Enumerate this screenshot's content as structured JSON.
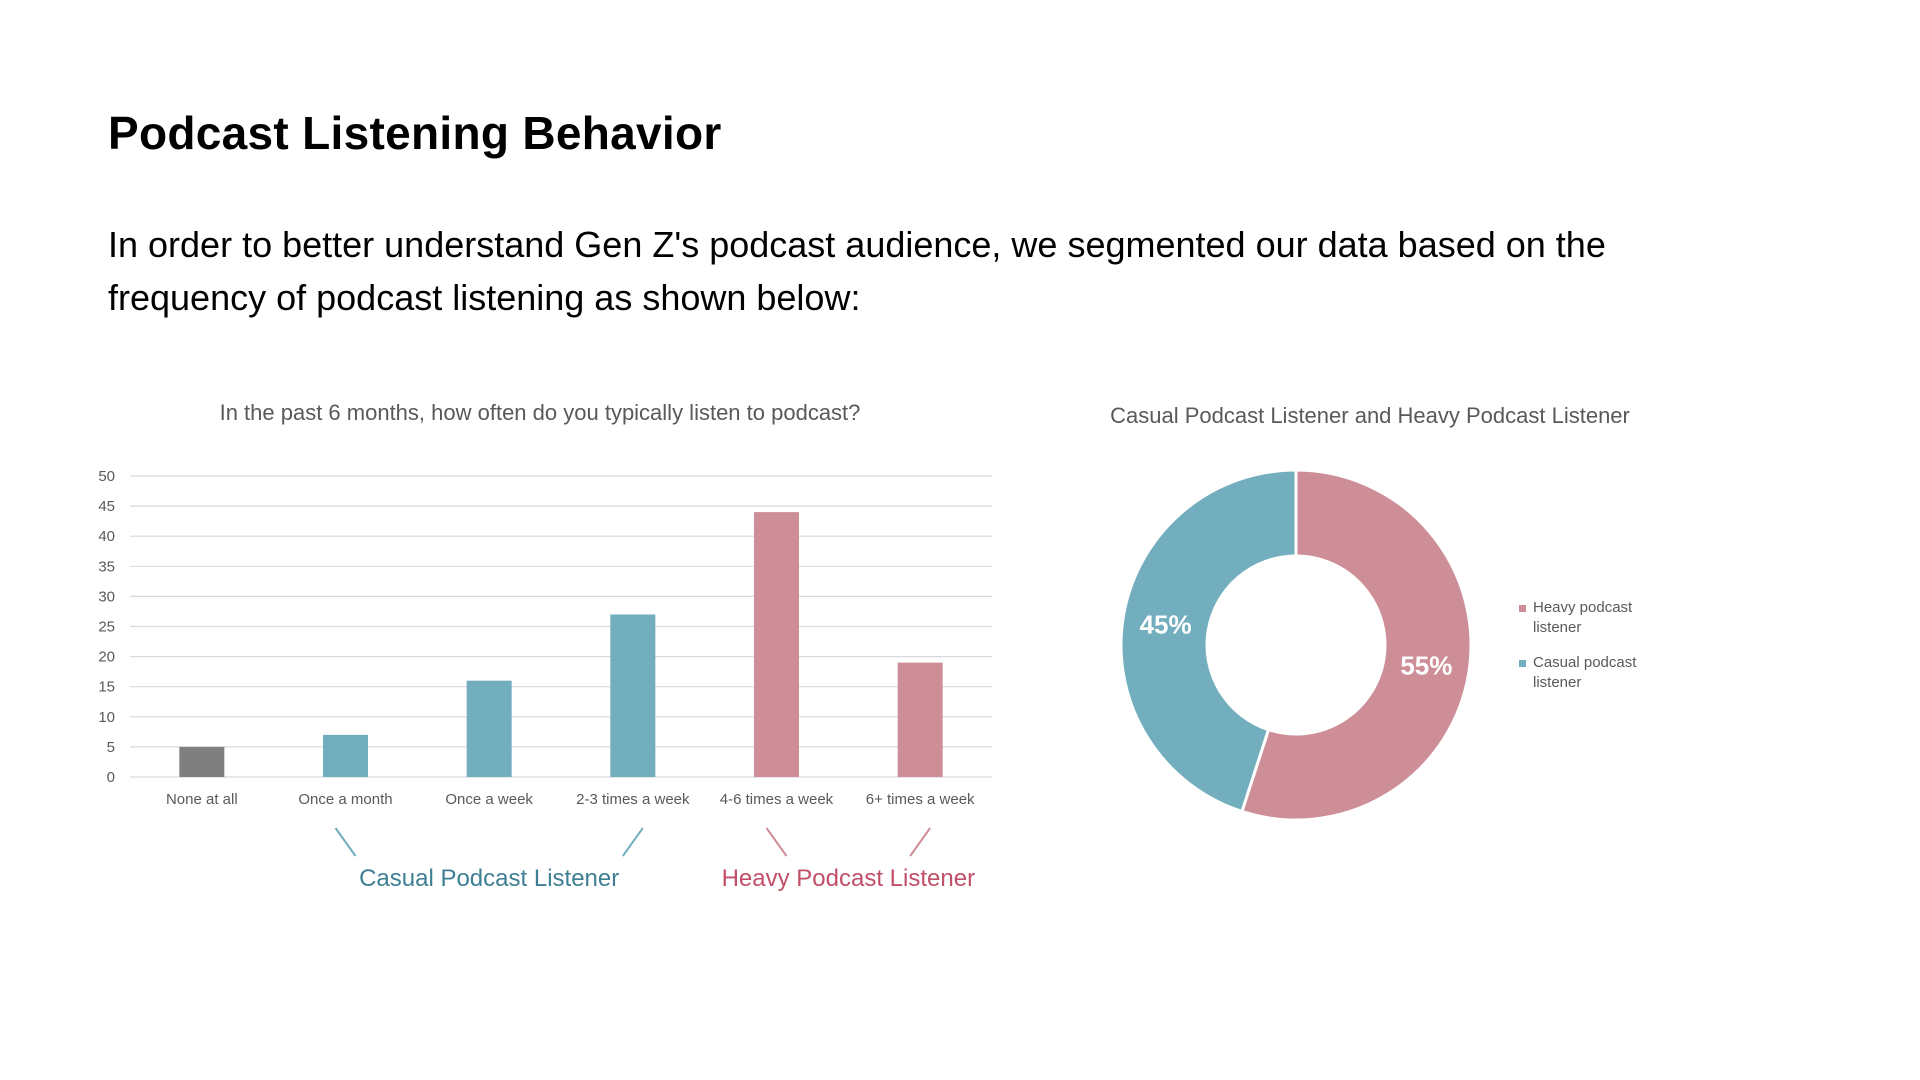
{
  "page": {
    "title": "Podcast Listening Behavior",
    "intro": "In order to better understand Gen Z's podcast audience, we segmented our data based on the frequency of podcast listening as shown below:"
  },
  "colors": {
    "casual": "#72aebe",
    "heavy": "#cd8e97",
    "none": "#7f7f7f",
    "casual_label": "#3f7f93",
    "heavy_label": "#c24f68",
    "grid": "#d9d9d9"
  },
  "chart_data": [
    {
      "type": "bar",
      "title": "In the past 6 months, how often do you typically listen to podcast?",
      "categories": [
        "None at all",
        "Once a month",
        "Once a week",
        "2-3 times a week",
        "4-6 times a week",
        "6+ times a week"
      ],
      "values": [
        5,
        7,
        16,
        27,
        44,
        19
      ],
      "bar_groups": [
        "none",
        "casual",
        "casual",
        "casual",
        "heavy",
        "heavy"
      ],
      "ylim": [
        0,
        50
      ],
      "yticks": [
        0,
        5,
        10,
        15,
        20,
        25,
        30,
        35,
        40,
        45,
        50
      ],
      "xlabel": "",
      "ylabel": "",
      "grid": true,
      "group_labels": [
        {
          "label": "Casual Podcast Listener",
          "group": "casual",
          "from_category": 1,
          "to_category": 3
        },
        {
          "label": "Heavy Podcast Listener",
          "group": "heavy",
          "from_category": 4,
          "to_category": 5
        }
      ]
    },
    {
      "type": "pie",
      "style": "donut",
      "title": "Casual Podcast Listener and Heavy Podcast Listener",
      "slices": [
        {
          "name": "Heavy podcast listener",
          "legend_lines": [
            "Heavy podcast",
            "listener"
          ],
          "value": 55,
          "label": "55%",
          "group": "heavy"
        },
        {
          "name": "Casual podcast listener",
          "legend_lines": [
            "Casual podcast",
            "listener"
          ],
          "value": 45,
          "label": "45%",
          "group": "casual"
        }
      ],
      "legend_position": "right"
    }
  ]
}
